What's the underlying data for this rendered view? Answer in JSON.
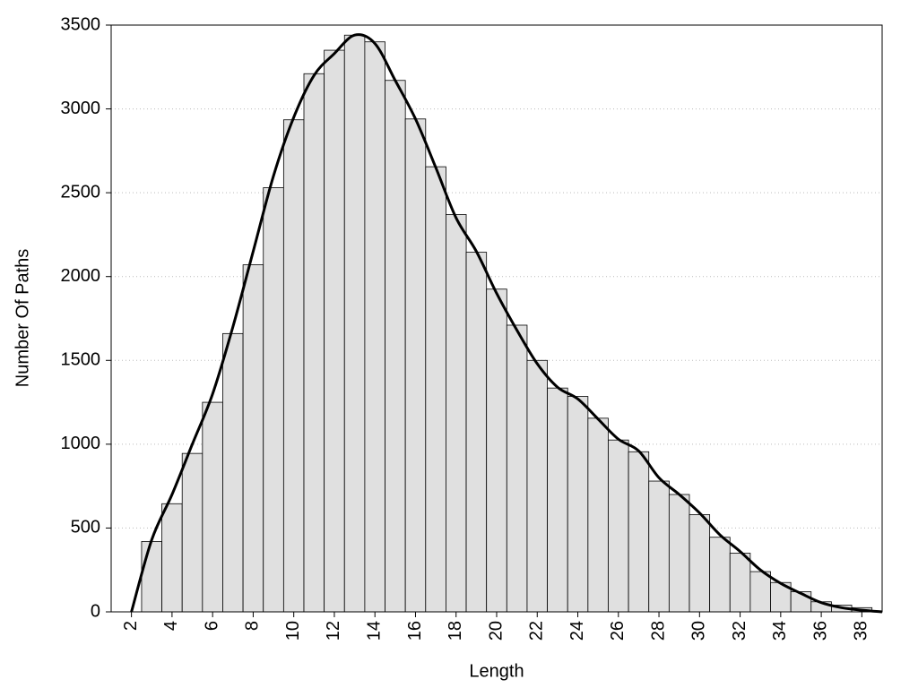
{
  "chart_data": {
    "type": "histogram",
    "xlabel": "Length",
    "ylabel": "Number Of Paths",
    "bins": [
      2.5,
      3.5,
      4.5,
      5.5,
      6.5,
      7.5,
      8.5,
      9.5,
      10.5,
      11.5,
      12.5,
      13.5,
      14.5,
      15.5,
      16.5,
      17.5,
      18.5,
      19.5,
      20.5,
      21.5,
      22.5,
      23.5,
      24.5,
      25.5,
      26.5,
      27.5,
      28.5,
      29.5,
      30.5,
      31.5,
      32.5,
      33.5,
      34.5,
      35.5,
      36.5,
      37.5,
      38.5
    ],
    "values": [
      420,
      645,
      945,
      1250,
      1660,
      2070,
      2530,
      2935,
      3210,
      3350,
      3440,
      3400,
      3170,
      2940,
      2655,
      2370,
      2145,
      1925,
      1710,
      1500,
      1335,
      1285,
      1155,
      1025,
      955,
      780,
      700,
      580,
      445,
      350,
      240,
      175,
      120,
      60,
      40,
      25
    ],
    "color": "#e0e0e0",
    "curve": {
      "color": "#000000",
      "x": [
        2,
        3,
        4,
        5,
        6,
        7,
        8,
        9,
        10,
        11,
        12,
        13,
        14,
        15,
        16,
        17,
        18,
        19,
        20,
        21,
        22,
        23,
        24,
        25,
        26,
        27,
        28,
        29,
        30,
        31,
        32,
        33,
        34,
        35,
        36,
        37,
        38,
        39
      ],
      "values": [
        0,
        430,
        700,
        1000,
        1300,
        1700,
        2150,
        2600,
        2950,
        3200,
        3330,
        3440,
        3390,
        3170,
        2940,
        2650,
        2350,
        2150,
        1900,
        1680,
        1480,
        1340,
        1270,
        1150,
        1030,
        960,
        800,
        700,
        590,
        460,
        360,
        250,
        170,
        110,
        55,
        25,
        10,
        0
      ]
    },
    "xlim": [
      1,
      39
    ],
    "xticks": [
      2,
      4,
      6,
      8,
      10,
      12,
      14,
      16,
      18,
      20,
      22,
      24,
      26,
      28,
      30,
      32,
      34,
      36,
      38
    ],
    "ylim": [
      0,
      3500
    ],
    "yticks": [
      0,
      500,
      1000,
      1500,
      2000,
      2500,
      3000,
      3500
    ],
    "grid": true
  }
}
